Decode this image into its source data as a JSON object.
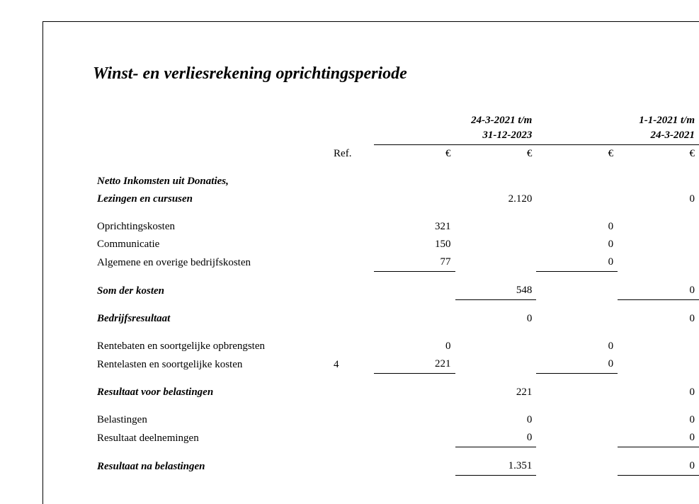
{
  "title": "Winst- en verliesrekening oprichtingsperiode",
  "header": {
    "ref_label": "Ref.",
    "currency": "€",
    "period1_line1": "24-3-2021 t/m",
    "period1_line2": "31-12-2023",
    "period2_line1": "1-1-2021 t/m",
    "period2_line2": "24-3-2021"
  },
  "rows": {
    "netto_label1": "Netto Inkomsten uit Donaties,",
    "netto_label2": "Lezingen en cursusen",
    "netto_p1": "2.120",
    "netto_p2": "0",
    "oprichtingskosten_label": "Oprichtingskosten",
    "oprichtingskosten_p1": "321",
    "oprichtingskosten_p2": "0",
    "communicatie_label": "Communicatie",
    "communicatie_p1": "150",
    "communicatie_p2": "0",
    "algemene_label": "Algemene en overige bedrijfskosten",
    "algemene_p1": "77",
    "algemene_p2": "0",
    "som_label": "Som der kosten",
    "som_p1": "548",
    "som_p2": "0",
    "bedrijfsresultaat_label": "Bedrijfsresultaat",
    "bedrijfsresultaat_p1": "0",
    "bedrijfsresultaat_p2": "0",
    "rentebaten_label": "Rentebaten en soortgelijke opbrengsten",
    "rentebaten_p1": "0",
    "rentebaten_p2": "0",
    "rentelasten_label": "Rentelasten en soortgelijke kosten",
    "rentelasten_ref": "4",
    "rentelasten_p1": "221",
    "rentelasten_p2": "0",
    "resultaat_voor_label": "Resultaat voor belastingen",
    "resultaat_voor_p1": "221",
    "resultaat_voor_p2": "0",
    "belastingen_label": "Belastingen",
    "belastingen_p1": "0",
    "belastingen_p2": "0",
    "deelnemingen_label": "Resultaat deelnemingen",
    "deelnemingen_p1": "0",
    "deelnemingen_p2": "0",
    "resultaat_na_label": "Resultaat na belastingen",
    "resultaat_na_p1": "1.351",
    "resultaat_na_p2": "0"
  },
  "style": {
    "font_family": "Georgia, Times New Roman, serif",
    "title_fontsize": 24,
    "body_fontsize": 15,
    "text_color": "#000000",
    "background_color": "#ffffff",
    "rule_color": "#000000"
  }
}
